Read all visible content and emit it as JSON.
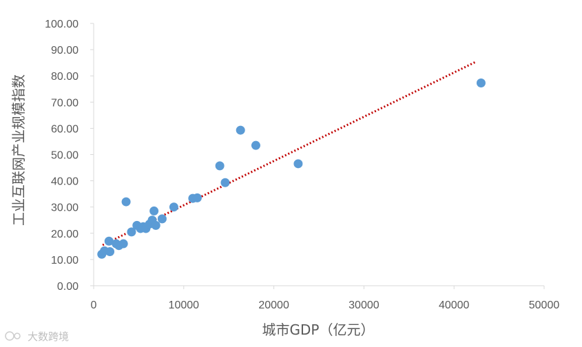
{
  "chart_data": {
    "type": "scatter",
    "title": "",
    "xlabel": "城市GDP（亿元）",
    "ylabel": "工业互联网产业规模指数",
    "xlim": [
      0,
      50000
    ],
    "ylim": [
      0,
      100
    ],
    "x_ticks": [
      "0",
      "10000",
      "20000",
      "30000",
      "40000",
      "50000"
    ],
    "y_ticks": [
      "0.00",
      "10.00",
      "20.00",
      "30.00",
      "40.00",
      "50.00",
      "60.00",
      "70.00",
      "80.00",
      "90.00",
      "100.00"
    ],
    "grid": false,
    "legend": "none",
    "marker_color": "#5b9bd5",
    "trendline": {
      "type": "linear",
      "style": "dotted",
      "color": "#c00000",
      "start": [
        1000,
        15.5
      ],
      "end": [
        42500,
        85.5
      ]
    },
    "series": [
      {
        "points": [
          [
            900,
            12.0
          ],
          [
            1200,
            13.3
          ],
          [
            1700,
            17.0
          ],
          [
            1800,
            13.0
          ],
          [
            2500,
            16.0
          ],
          [
            2800,
            15.3
          ],
          [
            3300,
            16.0
          ],
          [
            3600,
            32.0
          ],
          [
            4200,
            20.5
          ],
          [
            4800,
            23.0
          ],
          [
            5200,
            21.8
          ],
          [
            5500,
            22.5
          ],
          [
            5800,
            21.8
          ],
          [
            6200,
            23.5
          ],
          [
            6500,
            25.0
          ],
          [
            6700,
            28.5
          ],
          [
            6900,
            23.0
          ],
          [
            7600,
            25.5
          ],
          [
            8900,
            30.0
          ],
          [
            11000,
            33.3
          ],
          [
            11500,
            33.5
          ],
          [
            14000,
            45.7
          ],
          [
            14600,
            39.3
          ],
          [
            16300,
            59.3
          ],
          [
            18000,
            53.5
          ],
          [
            22700,
            46.5
          ],
          [
            43000,
            77.3
          ]
        ]
      }
    ]
  },
  "watermark": {
    "text": "大数跨境",
    "icon": "dashuju-logo"
  }
}
